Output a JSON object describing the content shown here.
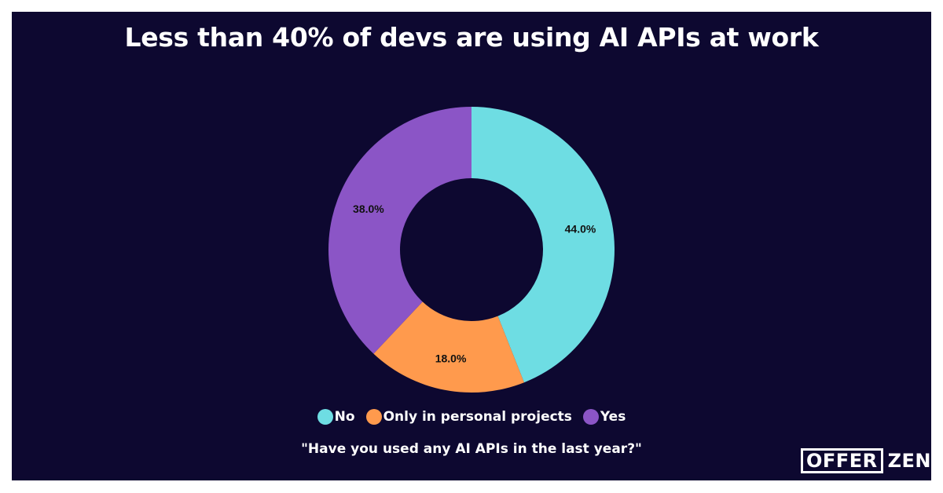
{
  "chart_data": {
    "type": "pie",
    "variant": "donut",
    "title": "Less than 40% of devs are using AI APIs at work",
    "subtitle": "\"Have you used any AI APIs in the last year?\"",
    "categories": [
      "No",
      "Only in personal projects",
      "Yes"
    ],
    "values": [
      44.0,
      18.0,
      38.0
    ],
    "labels": [
      "44.0%",
      "18.0%",
      "38.0%"
    ],
    "colors": [
      "#6edde3",
      "#ff9a4d",
      "#8b55c6"
    ],
    "legend_position": "bottom-center"
  },
  "brand": {
    "logo_boxed": "OFFER",
    "logo_rest": "ZEN"
  },
  "theme": {
    "background": "#0d0830",
    "text": "#ffffff"
  }
}
